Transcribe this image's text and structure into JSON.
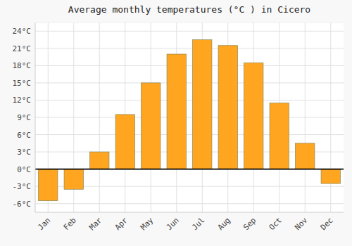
{
  "chart_data": {
    "type": "bar",
    "title": "Average monthly temperatures (°C ) in Cicero",
    "categories": [
      "Jan",
      "Feb",
      "Mar",
      "Apr",
      "May",
      "Jun",
      "Jul",
      "Aug",
      "Sep",
      "Oct",
      "Nov",
      "Dec"
    ],
    "values": [
      -5.5,
      -3.5,
      3.0,
      9.5,
      15.0,
      20.0,
      22.5,
      21.5,
      18.5,
      11.5,
      4.5,
      -2.5
    ],
    "color": "#FFA520",
    "ylim": [
      -7.5,
      25.5
    ],
    "yticks": [
      {
        "value": -6,
        "label": "-6°C"
      },
      {
        "value": -3,
        "label": "-3°C"
      },
      {
        "value": 0,
        "label": "0°C"
      },
      {
        "value": 3,
        "label": "3°C"
      },
      {
        "value": 6,
        "label": "6°C"
      },
      {
        "value": 9,
        "label": "9°C"
      },
      {
        "value": 12,
        "label": "12°C"
      },
      {
        "value": 15,
        "label": "15°C"
      },
      {
        "value": 18,
        "label": "18°C"
      },
      {
        "value": 21,
        "label": "21°C"
      },
      {
        "value": 24,
        "label": "24°C"
      }
    ],
    "grid": true
  }
}
